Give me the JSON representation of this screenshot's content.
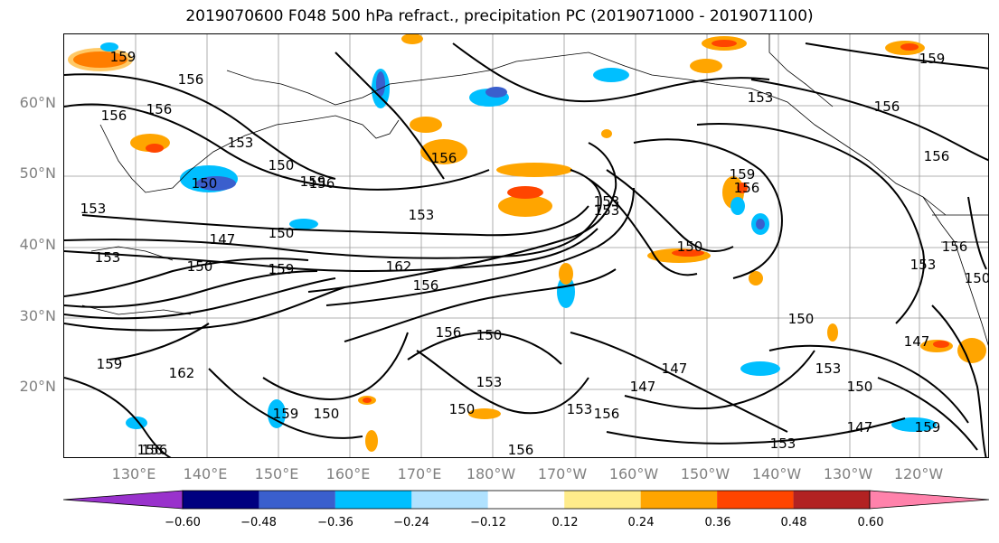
{
  "title": "2019070600 F048 500 hPa refract., precipitation PC (2019071000 - 2019071100)",
  "lat_labels": [
    "60°N",
    "50°N",
    "40°N",
    "30°N",
    "20°N"
  ],
  "lon_labels": [
    "130°E",
    "140°E",
    "150°E",
    "160°E",
    "170°E",
    "180°W",
    "170°W",
    "160°W",
    "150°W",
    "140°W",
    "130°W",
    "120°W"
  ],
  "contour_labels": [
    "159",
    "156",
    "156",
    "153",
    "150",
    "156",
    "156",
    "150",
    "159",
    "153",
    "150",
    "147",
    "150",
    "153",
    "153",
    "153",
    "150",
    "162",
    "156",
    "159",
    "156",
    "153",
    "156",
    "150",
    "147",
    "159",
    "150",
    "153",
    "162",
    "159",
    "156",
    "150",
    "147",
    "153",
    "153",
    "147",
    "150",
    "156",
    "153",
    "156",
    "156",
    "150",
    "159",
    "159",
    "156",
    "153",
    "159",
    "156",
    "150",
    "153",
    "156",
    "147",
    "156"
  ],
  "colorbar": {
    "ticks": [
      "−0.60",
      "−0.48",
      "−0.36",
      "−0.24",
      "−0.12",
      "0.12",
      "0.24",
      "0.36",
      "0.48",
      "0.60"
    ],
    "colors": [
      "#9932CC",
      "#000080",
      "#3A5FCD",
      "#00BFFF",
      "#B0E2FF",
      "#FFFFFF",
      "#FFEC8B",
      "#FFA500",
      "#FF4500",
      "#B22222",
      "#FF82AB"
    ]
  },
  "map_data": {
    "lat_range": [
      10,
      70
    ],
    "lon_range": [
      121,
      243
    ],
    "gridlines": true,
    "contour_variable": "500 hPa refractivity",
    "fill_variable": "precipitation PC"
  }
}
